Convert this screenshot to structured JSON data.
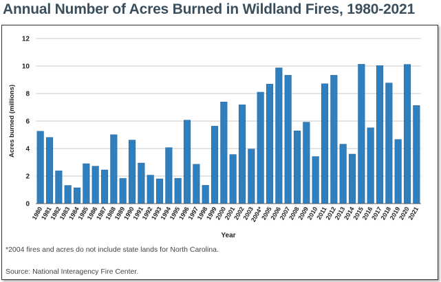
{
  "title": "Annual Number of Acres Burned in Wildland Fires, 1980-2021",
  "footnote": "*2004 fires and acres do not include state lands for North Carolina.",
  "source": "Source: National Interagency Fire Center.",
  "colors": {
    "bar": "#2f7fbf",
    "bar_edge": "#1f5f94",
    "title": "#3a4f5e",
    "grid": "#c8c8c8"
  },
  "chart_data": {
    "type": "bar",
    "title": "Annual Number of Acres Burned in Wildland Fires, 1980-2021",
    "xlabel": "Year",
    "ylabel": "Acres burned (millions)",
    "ylim": [
      0,
      12
    ],
    "yticks": [
      "0",
      "2",
      "4",
      "6",
      "8",
      "10",
      "12"
    ],
    "grid": true,
    "categories": [
      "1980",
      "1981",
      "1982",
      "1983",
      "1984",
      "1985",
      "1986",
      "1987",
      "1988",
      "1989",
      "1990",
      "1991",
      "1992",
      "1993",
      "1994",
      "1995",
      "1996",
      "1997",
      "1998",
      "1999",
      "2000",
      "2001",
      "2002",
      "2003",
      "2004*",
      "2005",
      "2006",
      "2007",
      "2008",
      "2009",
      "2010",
      "2011",
      "2012",
      "2013",
      "2014",
      "2015",
      "2016",
      "2017",
      "2018",
      "2019",
      "2020",
      "2021"
    ],
    "values": [
      5.26,
      4.81,
      2.38,
      1.32,
      1.15,
      2.9,
      2.72,
      2.45,
      5.01,
      1.83,
      4.62,
      2.95,
      2.07,
      1.8,
      4.07,
      1.84,
      6.07,
      2.86,
      1.33,
      5.63,
      7.39,
      3.57,
      7.18,
      3.96,
      8.1,
      8.69,
      9.87,
      9.33,
      5.29,
      5.92,
      3.42,
      8.71,
      9.33,
      4.32,
      3.6,
      10.13,
      5.51,
      10.03,
      8.77,
      4.66,
      10.12,
      7.13
    ]
  }
}
